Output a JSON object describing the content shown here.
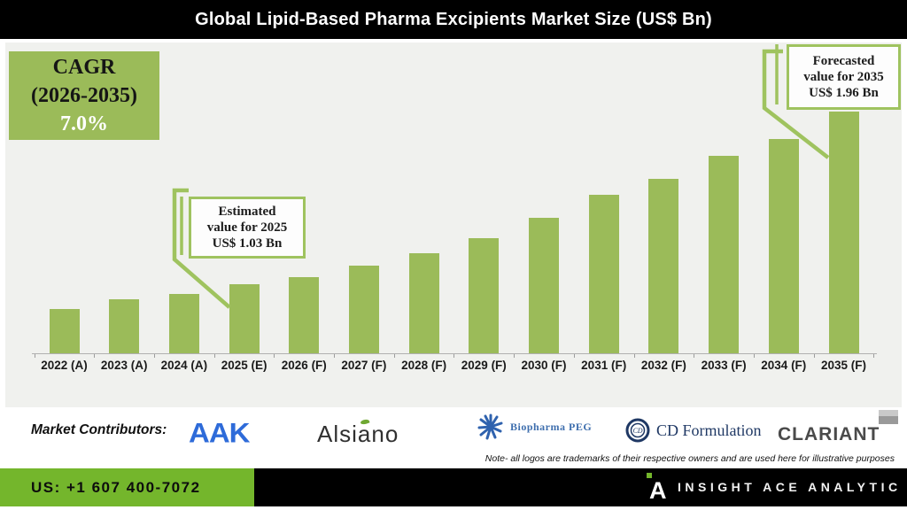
{
  "title_bar": {
    "title": "Global Lipid-Based Pharma Excipients Market Size (US$ Bn)"
  },
  "cagr_box": {
    "line1": "CAGR",
    "line2": "(2026-2035)",
    "line3": "7.0%"
  },
  "callouts": {
    "estimated": {
      "line1": "Estimated",
      "line2": "value for 2025",
      "line3": "US$ 1.03 Bn"
    },
    "forecasted": {
      "line1": "Forecasted",
      "line2": "value for 2035",
      "line3": "US$ 1.96 Bn"
    }
  },
  "chart_data": {
    "type": "bar",
    "title": "Global Lipid-Based Pharma Excipients Market Size (US$ Bn)",
    "unit": "US$ Bn",
    "categories": [
      "2022 (A)",
      "2023 (A)",
      "2024 (A)",
      "2025 (E)",
      "2026 (F)",
      "2027 (F)",
      "2028 (F)",
      "2029 (F)",
      "2030 (F)",
      "2031 (F)",
      "2032 (F)",
      "2033 (F)",
      "2034 (F)",
      "2035 (F)"
    ],
    "values": [
      0.9,
      0.95,
      0.98,
      1.03,
      1.07,
      1.13,
      1.2,
      1.28,
      1.39,
      1.51,
      1.6,
      1.72,
      1.81,
      1.96
    ],
    "ylim": [
      0.66,
      2.35
    ],
    "grid": false,
    "legend": false,
    "bar_color": "#9bbb59",
    "cagr": {
      "period": "2026-2035",
      "value": "7.0%"
    },
    "annotations": [
      {
        "category": "2025 (E)",
        "label": "Estimated value for 2025",
        "value": "US$ 1.03 Bn"
      },
      {
        "category": "2035 (F)",
        "label": "Forecasted value for 2035",
        "value": "US$ 1.96 Bn"
      }
    ]
  },
  "contributors": {
    "label": "Market Contributors:",
    "logos": [
      {
        "name": "AAK"
      },
      {
        "name": "Alsiano"
      },
      {
        "name": "Biopharma PEG"
      },
      {
        "name": "CD Formulation"
      },
      {
        "name": "CLARIANT"
      }
    ],
    "note": "Note- all logos are trademarks of their respective owners and are used here for illustrative purposes"
  },
  "footer": {
    "phone": "US: +1 607 400-7072",
    "brand": "INSIGHT ACE ANALYTIC"
  },
  "colors": {
    "bar_green": "#9bbb59",
    "box_border_green": "#9fc35f",
    "footer_green": "#74b62c",
    "title_bg": "#000000",
    "panel_bg": "#f0f1ee",
    "aak_blue": "#2e6bd9",
    "biopharma_blue": "#3f6fae",
    "cd_navy": "#1f3864",
    "clariant_gray": "#4a4a4a",
    "alsiano_dark": "#303030",
    "leaf_green": "#6fa832"
  }
}
